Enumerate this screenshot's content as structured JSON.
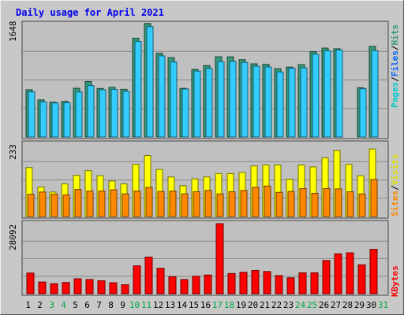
{
  "title": "Daily usage for April 2021",
  "chart_data": [
    {
      "type": "bar",
      "panel": "top",
      "ytick": "1648",
      "ymax": 1648,
      "categories": [
        "1",
        "2",
        "3",
        "4",
        "5",
        "6",
        "7",
        "8",
        "9",
        "10",
        "11",
        "12",
        "13",
        "14",
        "15",
        "16",
        "17",
        "18",
        "19",
        "20",
        "21",
        "22",
        "23",
        "24",
        "25",
        "26",
        "27",
        "28",
        "29",
        "30",
        "31"
      ],
      "weekend_days": [
        "3",
        "4",
        "10",
        "11",
        "17",
        "18",
        "24",
        "25",
        "31"
      ],
      "series": [
        {
          "name": "Hits",
          "color": "#339977",
          "values": [
            683,
            536,
            502,
            515,
            704,
            801,
            701,
            716,
            689,
            1425,
            1639,
            1209,
            1146,
            703,
            976,
            1031,
            1159,
            1157,
            1117,
            1057,
            1049,
            986,
            1010,
            1045,
            1232,
            1284,
            1274,
            0,
            711,
            1308,
            0
          ]
        },
        {
          "name": "Files",
          "color": "#33ccff",
          "values": [
            652,
            506,
            492,
            496,
            650,
            743,
            683,
            687,
            659,
            1381,
            1594,
            1171,
            1082,
            693,
            952,
            988,
            1089,
            1092,
            1077,
            1021,
            1011,
            938,
            994,
            998,
            1196,
            1244,
            1256,
            0,
            697,
            1246,
            0
          ]
        }
      ],
      "legend": "Hits / Files / Pages (right, rotated)",
      "right_labels": [
        {
          "text": "Pages",
          "color": "#00cccc"
        },
        {
          "text": "/",
          "color": "#000000"
        },
        {
          "text": "Files",
          "color": "#0066ff"
        },
        {
          "text": "/",
          "color": "#000000"
        },
        {
          "text": "Hits",
          "color": "#339977"
        }
      ]
    },
    {
      "type": "bar",
      "panel": "middle",
      "ytick": "233",
      "ymax": 233,
      "categories": [
        "1",
        "2",
        "3",
        "4",
        "5",
        "6",
        "7",
        "8",
        "9",
        "10",
        "11",
        "12",
        "13",
        "14",
        "15",
        "16",
        "17",
        "18",
        "19",
        "20",
        "21",
        "22",
        "23",
        "24",
        "25",
        "26",
        "27",
        "28",
        "29",
        "30",
        "31"
      ],
      "series": [
        {
          "name": "Visits",
          "color": "#ffff00",
          "values": [
            156,
            94,
            78,
            104,
            131,
            146,
            130,
            113,
            104,
            166,
            194,
            150,
            126,
            98,
            120,
            126,
            137,
            137,
            140,
            161,
            164,
            164,
            119,
            164,
            158,
            187,
            210,
            166,
            130,
            215,
            0
          ]
        },
        {
          "name": "Sites",
          "color": "#ff8800",
          "values": [
            71,
            78,
            71,
            69,
            86,
            81,
            81,
            85,
            72,
            81,
            93,
            80,
            81,
            72,
            79,
            83,
            72,
            79,
            83,
            93,
            97,
            77,
            80,
            89,
            74,
            89,
            88,
            79,
            72,
            118,
            0
          ]
        }
      ],
      "legend": "Visits / Sites (right, rotated)",
      "right_labels": [
        {
          "text": "Sites",
          "color": "#ff8800"
        },
        {
          "text": "/",
          "color": "#000000"
        },
        {
          "text": "Visits",
          "color": "#dddd00"
        }
      ]
    },
    {
      "type": "bar",
      "panel": "bottom",
      "ytick": "28092",
      "ymax": 28092,
      "categories": [
        "1",
        "2",
        "3",
        "4",
        "5",
        "6",
        "7",
        "8",
        "9",
        "10",
        "11",
        "12",
        "13",
        "14",
        "15",
        "16",
        "17",
        "18",
        "19",
        "20",
        "21",
        "22",
        "23",
        "24",
        "25",
        "26",
        "27",
        "28",
        "29",
        "30",
        "31"
      ],
      "series": [
        {
          "name": "KBytes",
          "color": "#ff0000",
          "values": [
            8300,
            4700,
            4000,
            4500,
            6000,
            5700,
            5200,
            4400,
            3600,
            11200,
            14700,
            10200,
            6800,
            5700,
            7000,
            7500,
            28092,
            8100,
            8600,
            9300,
            8900,
            7300,
            6400,
            8400,
            8400,
            13300,
            16000,
            16400,
            11600,
            17800,
            0
          ]
        }
      ],
      "legend": "KBytes (right, rotated)",
      "right_labels": [
        {
          "text": "KBytes",
          "color": "#ff0000"
        }
      ]
    }
  ],
  "colors": {
    "plot_bg": "#c0c0c0",
    "frame_bg": "#c8c8c8",
    "gridline": "#888888",
    "weekday_tick": "#000000",
    "weekend_tick": "#00aa44"
  }
}
